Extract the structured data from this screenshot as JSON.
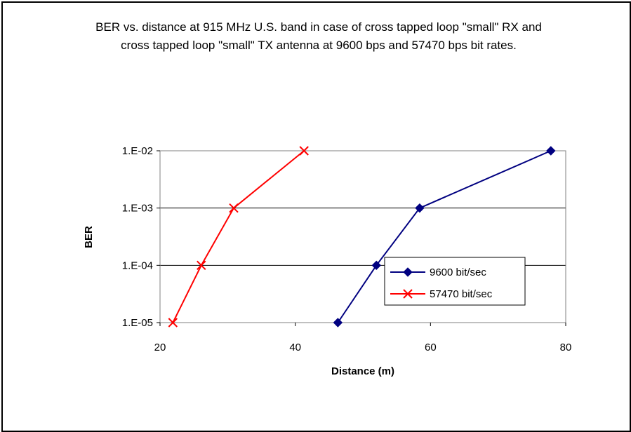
{
  "chart_data": {
    "type": "line",
    "title": "BER vs. distance at 915 MHz U.S. band in case of cross tapped loop \"small\" RX and cross tapped loop \"small\" TX antenna at 9600 bps and 57470 bps bit rates.",
    "xlabel": "Distance (m)",
    "ylabel": "BER",
    "xlim": [
      20,
      80
    ],
    "ylim": [
      1e-05,
      0.01
    ],
    "yscale": "log",
    "x_ticks": [
      "20",
      "40",
      "60",
      "80"
    ],
    "y_ticks": [
      "1.E-05",
      "1.E-04",
      "1.E-03",
      "1.E-02"
    ],
    "grid": "horizontal",
    "legend_position": "right",
    "series": [
      {
        "name": "9600 bit/sec",
        "color": "#000080",
        "marker": "diamond",
        "x": [
          46.3,
          52,
          58.4,
          77.8
        ],
        "y": [
          1e-05,
          0.0001,
          0.001,
          0.01
        ]
      },
      {
        "name": "57470 bit/sec",
        "color": "#ff0000",
        "marker": "x",
        "x": [
          21.9,
          26.1,
          30.9,
          41.3
        ],
        "y": [
          1e-05,
          0.0001,
          0.001,
          0.01
        ]
      }
    ]
  }
}
